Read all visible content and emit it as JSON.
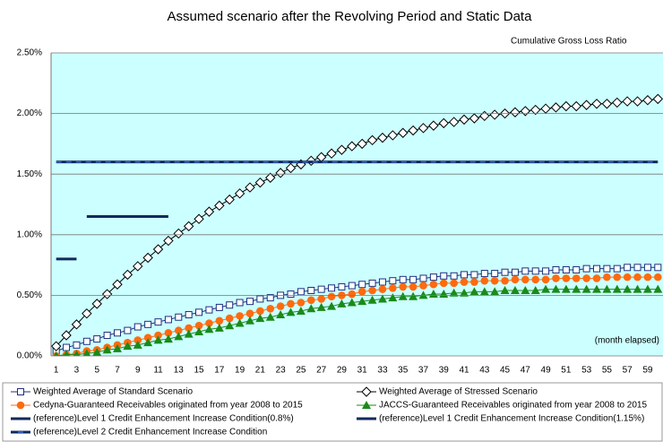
{
  "chart_data": {
    "type": "line",
    "title": "Assumed scenario after the Revolving Period and Static Data",
    "y_label": "Cumulative Gross Loss Ratio",
    "x_label": "(month elapsed)",
    "categories": [
      1,
      null,
      3,
      null,
      5,
      null,
      7,
      null,
      9,
      null,
      11,
      null,
      13,
      null,
      15,
      null,
      17,
      null,
      19,
      null,
      21,
      null,
      23,
      null,
      25,
      null,
      27,
      null,
      29,
      null,
      31,
      null,
      33,
      null,
      35,
      null,
      37,
      null,
      39,
      null,
      41,
      null,
      43,
      null,
      45,
      null,
      47,
      null,
      49,
      null,
      51,
      null,
      53,
      null,
      55,
      null,
      57,
      null,
      59,
      null
    ],
    "ylim": [
      0,
      2.5
    ],
    "yticks": [
      {
        "value": 0,
        "label": "0.00%"
      },
      {
        "value": 0.5,
        "label": "0.50%"
      },
      {
        "value": 1,
        "label": "1.00%"
      },
      {
        "value": 1.5,
        "label": "1.50%"
      },
      {
        "value": 2,
        "label": "2.00%"
      },
      {
        "value": 2.5,
        "label": "2.50%"
      }
    ],
    "grid": true,
    "plot_background": "#ccffff",
    "series": [
      {
        "name": "Weighted Average of Standard Scenario",
        "color": "#1f2f7f",
        "marker": "square",
        "values": [
          0.04,
          0.07,
          0.09,
          0.12,
          0.14,
          0.17,
          0.19,
          0.21,
          0.24,
          0.26,
          0.28,
          0.3,
          0.32,
          0.34,
          0.36,
          0.38,
          0.4,
          0.42,
          0.44,
          0.45,
          0.47,
          0.48,
          0.5,
          0.51,
          0.53,
          0.54,
          0.55,
          0.56,
          0.57,
          0.58,
          0.59,
          0.6,
          0.61,
          0.62,
          0.63,
          0.63,
          0.64,
          0.65,
          0.66,
          0.66,
          0.67,
          0.67,
          0.68,
          0.68,
          0.69,
          0.69,
          0.7,
          0.7,
          0.7,
          0.71,
          0.71,
          0.71,
          0.72,
          0.72,
          0.72,
          0.72,
          0.73,
          0.73,
          0.73,
          0.73
        ]
      },
      {
        "name": "Weighted Average of Stressed Scenario",
        "color": "#000000",
        "marker": "diamond",
        "values": [
          0.08,
          0.17,
          0.26,
          0.35,
          0.43,
          0.51,
          0.59,
          0.67,
          0.74,
          0.81,
          0.88,
          0.95,
          1.01,
          1.07,
          1.13,
          1.19,
          1.24,
          1.29,
          1.34,
          1.39,
          1.43,
          1.47,
          1.51,
          1.55,
          1.58,
          1.61,
          1.64,
          1.67,
          1.7,
          1.73,
          1.75,
          1.78,
          1.8,
          1.82,
          1.84,
          1.86,
          1.88,
          1.9,
          1.92,
          1.93,
          1.95,
          1.96,
          1.98,
          1.99,
          2.0,
          2.01,
          2.02,
          2.03,
          2.04,
          2.05,
          2.06,
          2.06,
          2.07,
          2.08,
          2.08,
          2.09,
          2.1,
          2.1,
          2.11,
          2.12
        ]
      },
      {
        "name": "Cedyna-Guaranteed Receivables originated from year 2008 to 2015",
        "color": "#ff6a10",
        "marker": "circle",
        "values": [
          0.0,
          0.01,
          0.02,
          0.04,
          0.05,
          0.07,
          0.09,
          0.11,
          0.13,
          0.15,
          0.17,
          0.19,
          0.21,
          0.23,
          0.25,
          0.27,
          0.29,
          0.31,
          0.33,
          0.35,
          0.37,
          0.39,
          0.41,
          0.43,
          0.44,
          0.46,
          0.47,
          0.49,
          0.5,
          0.51,
          0.53,
          0.54,
          0.55,
          0.56,
          0.57,
          0.57,
          0.58,
          0.59,
          0.6,
          0.6,
          0.61,
          0.61,
          0.62,
          0.62,
          0.62,
          0.63,
          0.63,
          0.63,
          0.63,
          0.64,
          0.64,
          0.64,
          0.64,
          0.64,
          0.65,
          0.65,
          0.65,
          0.65,
          0.65,
          0.65
        ]
      },
      {
        "name": "JACCS-Guaranteed Receivables originated from year 2008 to 2015",
        "color": "#1a8a1a",
        "marker": "triangle",
        "values": [
          0.0,
          0.01,
          0.01,
          0.02,
          0.03,
          0.05,
          0.06,
          0.08,
          0.09,
          0.11,
          0.13,
          0.14,
          0.16,
          0.18,
          0.2,
          0.22,
          0.23,
          0.25,
          0.27,
          0.29,
          0.31,
          0.32,
          0.34,
          0.36,
          0.37,
          0.39,
          0.4,
          0.41,
          0.43,
          0.44,
          0.45,
          0.46,
          0.47,
          0.48,
          0.49,
          0.49,
          0.5,
          0.51,
          0.51,
          0.52,
          0.52,
          0.53,
          0.53,
          0.53,
          0.54,
          0.54,
          0.54,
          0.54,
          0.55,
          0.55,
          0.55,
          0.55,
          0.55,
          0.55,
          0.55,
          0.55,
          0.55,
          0.55,
          0.55,
          0.55
        ]
      },
      {
        "name": "(reference)Level 1 Credit Enhancement Increase Condition(0.8%)",
        "color": "#0f2a5c",
        "marker": "none",
        "values": [
          0.8,
          0.8,
          0.8,
          null,
          null,
          null,
          null,
          null,
          null,
          null,
          null,
          null,
          null,
          null,
          null,
          null,
          null,
          null,
          null,
          null,
          null,
          null,
          null,
          null,
          null,
          null,
          null,
          null,
          null,
          null,
          null,
          null,
          null,
          null,
          null,
          null,
          null,
          null,
          null,
          null,
          null,
          null,
          null,
          null,
          null,
          null,
          null,
          null,
          null,
          null,
          null,
          null,
          null,
          null,
          null,
          null,
          null,
          null,
          null,
          null
        ]
      },
      {
        "name": "(reference)Level 1 Credit Enhancement Increase Condition(1.15%)",
        "color": "#0f2a5c",
        "marker": "none",
        "values": [
          null,
          null,
          null,
          1.15,
          1.15,
          1.15,
          1.15,
          1.15,
          1.15,
          1.15,
          1.15,
          1.15,
          null,
          null,
          null,
          null,
          null,
          null,
          null,
          null,
          null,
          null,
          null,
          null,
          null,
          null,
          null,
          null,
          null,
          null,
          null,
          null,
          null,
          null,
          null,
          null,
          null,
          null,
          null,
          null,
          null,
          null,
          null,
          null,
          null,
          null,
          null,
          null,
          null,
          null,
          null,
          null,
          null,
          null,
          null,
          null,
          null,
          null,
          null,
          null
        ]
      },
      {
        "name": "(reference)Level 2 Credit Enhancement Increase Condition",
        "color": "#0f2a5c",
        "marker": "dash",
        "values": [
          1.6,
          1.6,
          1.6,
          1.6,
          1.6,
          1.6,
          1.6,
          1.6,
          1.6,
          1.6,
          1.6,
          1.6,
          1.6,
          1.6,
          1.6,
          1.6,
          1.6,
          1.6,
          1.6,
          1.6,
          1.6,
          1.6,
          1.6,
          1.6,
          1.6,
          1.6,
          1.6,
          1.6,
          1.6,
          1.6,
          1.6,
          1.6,
          1.6,
          1.6,
          1.6,
          1.6,
          1.6,
          1.6,
          1.6,
          1.6,
          1.6,
          1.6,
          1.6,
          1.6,
          1.6,
          1.6,
          1.6,
          1.6,
          1.6,
          1.6,
          1.6,
          1.6,
          1.6,
          1.6,
          1.6,
          1.6,
          1.6,
          1.6,
          1.6,
          1.6
        ]
      }
    ]
  }
}
